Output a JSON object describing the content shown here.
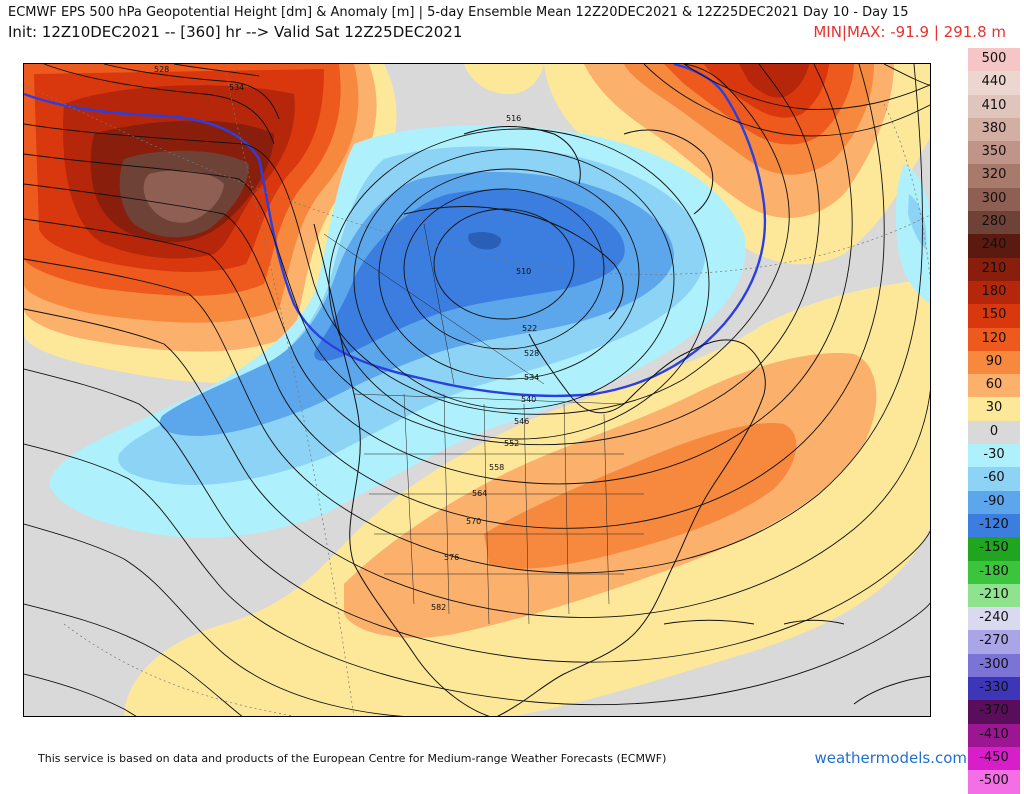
{
  "header": {
    "title": "ECMWF EPS 500 hPa Geopotential Height [dm] & Anomaly [m] | 5-day Ensemble Mean 12Z20DEC2021 & 12Z25DEC2021   Day 10 - Day 15",
    "init": "Init: 12Z10DEC2021 -- [360] hr --> Valid Sat 12Z25DEC2021",
    "minmax": "MIN|MAX: -91.9 | 291.8 m"
  },
  "colors": {
    "minmax_text": "#e8322d",
    "brand_text": "#1f6fd1",
    "height_5400_contour": "#2b3fe0",
    "neutral_anomaly": "#d9d9d9"
  },
  "contour_labels": [
    "528",
    "534",
    "516",
    "510",
    "522",
    "528",
    "534",
    "540",
    "546",
    "552",
    "558",
    "564",
    "570",
    "576",
    "582"
  ],
  "color_scale": [
    {
      "label": "500",
      "color": "#f6c6c6"
    },
    {
      "label": "440",
      "color": "#ebd6d0"
    },
    {
      "label": "410",
      "color": "#e0c5bd"
    },
    {
      "label": "380",
      "color": "#d2aea3"
    },
    {
      "label": "350",
      "color": "#c09488"
    },
    {
      "label": "320",
      "color": "#a87a6c"
    },
    {
      "label": "300",
      "color": "#8e5f52"
    },
    {
      "label": "280",
      "color": "#6e4236"
    },
    {
      "label": "240",
      "color": "#5a1a10"
    },
    {
      "label": "210",
      "color": "#8a1e0c"
    },
    {
      "label": "180",
      "color": "#b5260a"
    },
    {
      "label": "150",
      "color": "#d9380e"
    },
    {
      "label": "120",
      "color": "#ee5a1e"
    },
    {
      "label": "90",
      "color": "#f7893f"
    },
    {
      "label": "60",
      "color": "#fbb06c"
    },
    {
      "label": "30",
      "color": "#fde89a"
    },
    {
      "label": "0",
      "color": "#d9d9d9"
    },
    {
      "label": "-30",
      "color": "#aef0fb"
    },
    {
      "label": "-60",
      "color": "#8dd3f6"
    },
    {
      "label": "-90",
      "color": "#5ca6ec"
    },
    {
      "label": "-120",
      "color": "#3b7ee0"
    },
    {
      "label": "-150",
      "color": "#1fa51f"
    },
    {
      "label": "-180",
      "color": "#3dc43d"
    },
    {
      "label": "-210",
      "color": "#8fe38f"
    },
    {
      "label": "-240",
      "color": "#d9d9f0"
    },
    {
      "label": "-270",
      "color": "#a9a5e6"
    },
    {
      "label": "-300",
      "color": "#7b73d6"
    },
    {
      "label": "-330",
      "color": "#3d36b8"
    },
    {
      "label": "-370",
      "color": "#5a0d5a"
    },
    {
      "label": "-410",
      "color": "#9c1592"
    },
    {
      "label": "-450",
      "color": "#d81ec9"
    },
    {
      "label": "-500",
      "color": "#f46fe6"
    }
  ],
  "footer": {
    "attribution": "This service is based on data and products of the European Centre for Medium-range Weather Forecasts (ECMWF)",
    "brand": "weathermodels.com"
  }
}
